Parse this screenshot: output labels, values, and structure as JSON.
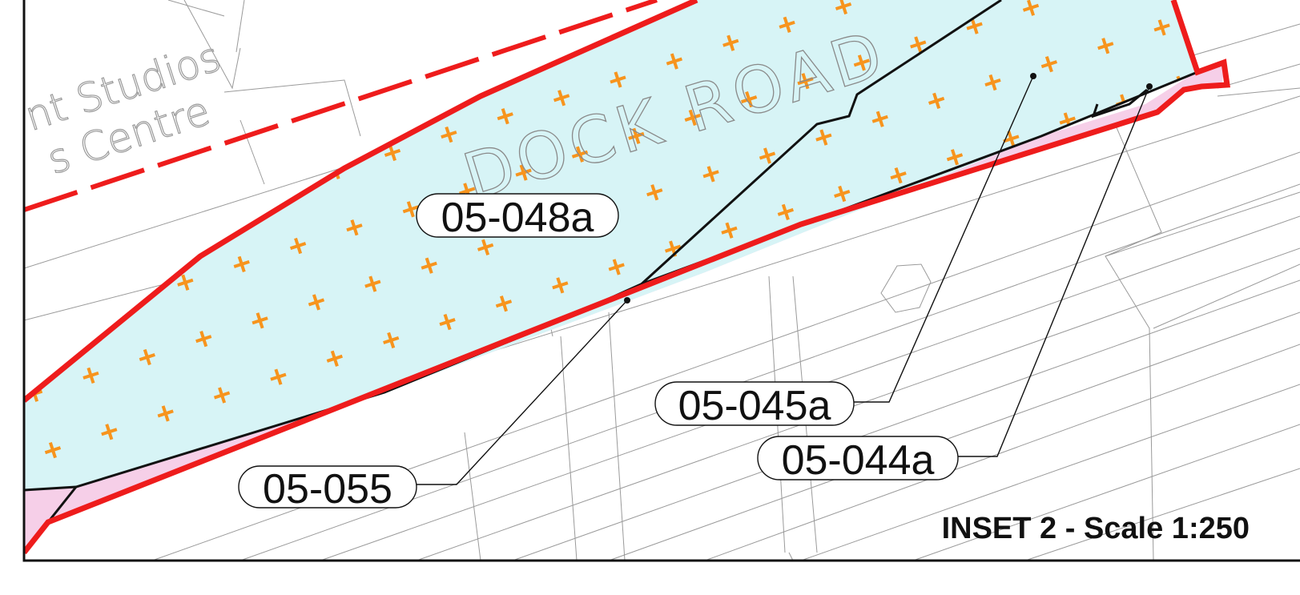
{
  "map": {
    "background_labels": [
      "nt Studios",
      "s Centre"
    ],
    "road_label": "DOCK ROAD",
    "parcels": [
      {
        "id": "05-048a"
      },
      {
        "id": "05-045a"
      },
      {
        "id": "05-044a"
      },
      {
        "id": "05-055"
      }
    ],
    "inset_title": "INSET 2 - Scale 1:250",
    "colors": {
      "boundary_red": "#ee1c1c",
      "parcel_fill": "#d7f4f6",
      "pink_fill": "#f6cfe8",
      "plus_marker": "#f7941d"
    }
  }
}
